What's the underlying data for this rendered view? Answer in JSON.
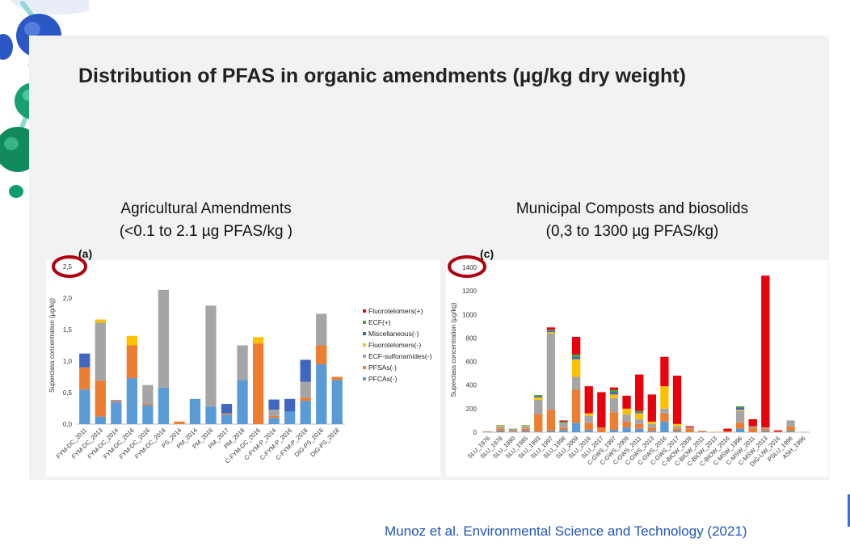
{
  "slide": {
    "title": "Distribution of PFAS in organic amendments (µg/kg dry weight)",
    "left_heading_1": "Agricultural Amendments",
    "left_heading_2": "(<0.1 to 2.1 µg PFAS/kg )",
    "right_heading_1": "Municipal Composts and biosolids",
    "right_heading_2": "(0,3 to 1300 µg PFAS/kg)",
    "citation": "Munoz et al. Environmental Science and Technology (2021)",
    "highlight_color": "#b00010"
  },
  "colors": {
    "Fluorotelomers(+)": "#e8000b",
    "ECF(+)": "#4aa031",
    "Miscellaneous(-)": "#3f66c0",
    "Fluorotelomers(-)": "#ffc000",
    "ECF-sulfonamides(-)": "#a5a5a5",
    "PFSAs(-)": "#ed7d31",
    "PFCAs(-)": "#5b9bd5"
  },
  "chart_data": [
    {
      "type": "bar",
      "stacked": true,
      "panel_label": "(a)",
      "ylabel": "Superclass concentration (µg/kg)",
      "ylim": [
        0,
        2.5
      ],
      "yticks": [
        "0,0",
        "0,5",
        "1,0",
        "1,5",
        "2,0",
        "2,5"
      ],
      "legend_position": "right",
      "legend": [
        "Fluorotelomers(+)",
        "ECF(+)",
        "Miscellaneous(-)",
        "Fluorotelomers(-)",
        "ECF-sulfonamides(-)",
        "PFSAs(-)",
        "PFCAs(-)"
      ],
      "categories": [
        "FYM-DC_2011",
        "FYM-DC_2013",
        "FYM-DC_2014",
        "FYM-DC_2016",
        "FYM-DC_2016",
        "FYM-DC_2018",
        "PS_2014",
        "PM_2014",
        "PM_2016",
        "PM_2017",
        "PM_2018",
        "C-FYM-DC_2016",
        "C-FYM-P_2014",
        "C-FYM-P_2016",
        "C-FYM-P_2018",
        "DIG-PS_2016",
        "DIG-PS_2018"
      ],
      "series": [
        {
          "name": "PFCAs(-)",
          "values": [
            0.55,
            0.12,
            0.35,
            0.73,
            0.3,
            0.58,
            0,
            0.4,
            0.28,
            0.15,
            0.7,
            0,
            0.1,
            0.2,
            0.37,
            0.95,
            0.7
          ]
        },
        {
          "name": "PFSAs(-)",
          "values": [
            0.35,
            0.57,
            0.02,
            0.52,
            0.02,
            0,
            0.04,
            0,
            0,
            0.02,
            0,
            1.28,
            0.03,
            0,
            0.05,
            0.3,
            0.05
          ]
        },
        {
          "name": "ECF-sulfonamides(-)",
          "values": [
            0,
            0.92,
            0,
            0,
            0.3,
            1.55,
            0,
            0,
            1.6,
            0,
            0.55,
            0,
            0.1,
            0,
            0.25,
            0.5,
            0
          ]
        },
        {
          "name": "Fluorotelomers(-)",
          "values": [
            0,
            0.05,
            0,
            0.15,
            0,
            0,
            0,
            0,
            0,
            0,
            0,
            0.1,
            0,
            0,
            0,
            0,
            0
          ]
        },
        {
          "name": "Miscellaneous(-)",
          "values": [
            0.22,
            0,
            0.01,
            0,
            0,
            0,
            0,
            0,
            0,
            0.15,
            0,
            0,
            0.16,
            0.2,
            0.35,
            0,
            0
          ]
        },
        {
          "name": "ECF(+)",
          "values": [
            0,
            0,
            0,
            0,
            0,
            0,
            0,
            0,
            0,
            0,
            0,
            0,
            0,
            0,
            0,
            0,
            0
          ]
        },
        {
          "name": "Fluorotelomers(+)",
          "values": [
            0,
            0,
            0,
            0,
            0,
            0,
            0,
            0,
            0,
            0,
            0,
            0,
            0,
            0,
            0,
            0,
            0
          ]
        }
      ]
    },
    {
      "type": "bar",
      "stacked": true,
      "panel_label": "(c)",
      "ylabel": "Superclass concentration (µg/kg)",
      "ylim": [
        0,
        1400
      ],
      "yticks": [
        "0",
        "200",
        "400",
        "600",
        "800",
        "1000",
        "1200",
        "1400"
      ],
      "categories": [
        "SLU_1976",
        "SLU_1978",
        "SLU_1980",
        "SLU_1985",
        "SLU_1993",
        "SLU_1997",
        "SLU_1998",
        "SLU_2009",
        "SLU_2016",
        "SLU_2017",
        "C-GWS_1997",
        "C-GWS_2009",
        "C-GWS_2011",
        "C-GWS_2013",
        "C-GWS_2016",
        "C-GWS_2017",
        "C-BIOW_2009",
        "C-BIOW_2011",
        "C-BIOW_2013",
        "C-BIOW_2016",
        "C-MSW_1996",
        "C-MSW_2011",
        "C-MSW_2013",
        "DIG-UW_2016",
        "PSLU_1996",
        "ASH_1996"
      ],
      "series": [
        {
          "name": "PFCAs(-)",
          "values": [
            2,
            10,
            5,
            10,
            5,
            10,
            20,
            80,
            20,
            0,
            20,
            40,
            30,
            10,
            90,
            10,
            0,
            0,
            0,
            0,
            30,
            0,
            10,
            0,
            10,
            0
          ]
        },
        {
          "name": "PFSAs(-)",
          "values": [
            2,
            20,
            10,
            20,
            150,
            180,
            20,
            280,
            60,
            40,
            150,
            50,
            40,
            30,
            70,
            20,
            30,
            10,
            2,
            10,
            50,
            40,
            20,
            5,
            40,
            0
          ]
        },
        {
          "name": "ECF-sulfonamides(-)",
          "values": [
            3,
            20,
            10,
            20,
            120,
            650,
            40,
            110,
            60,
            0,
            120,
            60,
            40,
            30,
            40,
            20,
            10,
            2,
            0,
            0,
            100,
            10,
            10,
            0,
            50,
            0
          ]
        },
        {
          "name": "Fluorotelomers(-)",
          "values": [
            0,
            5,
            0,
            5,
            20,
            10,
            0,
            150,
            20,
            0,
            30,
            50,
            50,
            20,
            190,
            20,
            0,
            0,
            0,
            0,
            10,
            0,
            0,
            0,
            0,
            0
          ]
        },
        {
          "name": "Miscellaneous(-)",
          "values": [
            0,
            0,
            0,
            0,
            10,
            10,
            0,
            20,
            0,
            0,
            20,
            0,
            10,
            0,
            0,
            0,
            0,
            0,
            0,
            0,
            20,
            0,
            0,
            0,
            0,
            0
          ]
        },
        {
          "name": "ECF(+)",
          "values": [
            0,
            5,
            5,
            5,
            10,
            10,
            10,
            20,
            0,
            0,
            20,
            0,
            10,
            0,
            0,
            0,
            0,
            0,
            0,
            0,
            10,
            0,
            0,
            0,
            0,
            0
          ]
        },
        {
          "name": "Fluorotelomers(+)",
          "values": [
            0,
            0,
            0,
            0,
            0,
            20,
            10,
            150,
            230,
            300,
            20,
            110,
            310,
            230,
            250,
            410,
            10,
            0,
            0,
            20,
            0,
            60,
            1290,
            10,
            0,
            0
          ]
        }
      ]
    }
  ]
}
